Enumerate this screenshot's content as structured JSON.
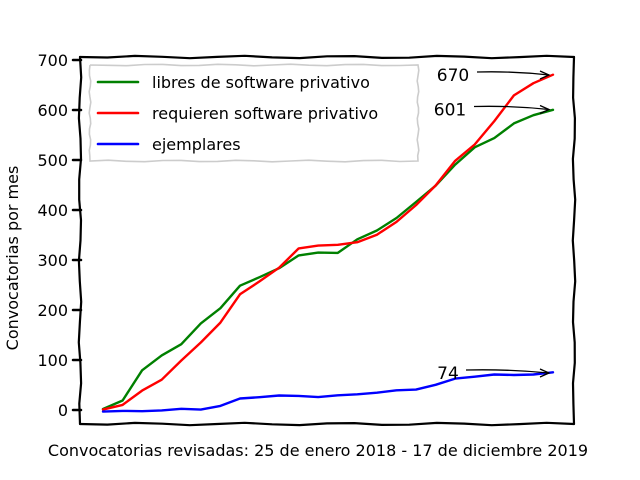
{
  "chart_data": {
    "type": "line",
    "xlabel": "Convocatorias revisadas: 25 de enero 2018 - 17 de diciembre 2019",
    "ylabel": "Convocatorias por mes",
    "ylim": [
      -30,
      700
    ],
    "yticks": [
      0,
      100,
      200,
      300,
      400,
      500,
      600,
      700
    ],
    "grid": false,
    "legend_position": "top-left",
    "x": [
      0,
      1,
      2,
      3,
      4,
      5,
      6,
      7,
      8,
      9,
      10,
      11,
      12,
      13,
      14,
      15,
      16,
      17,
      18,
      19,
      20,
      21,
      22,
      23
    ],
    "series": [
      {
        "name": "libres de software privativo",
        "color": "#008000",
        "values": [
          2,
          20,
          78,
          110,
          132,
          172,
          205,
          248,
          265,
          285,
          308,
          315,
          315,
          340,
          360,
          384,
          415,
          450,
          490,
          525,
          545,
          572,
          590,
          601
        ],
        "end_label": "601"
      },
      {
        "name": "requieren software privativo",
        "color": "#ff0000",
        "values": [
          2,
          10,
          38,
          62,
          98,
          135,
          176,
          230,
          258,
          285,
          322,
          330,
          330,
          335,
          352,
          375,
          410,
          450,
          497,
          532,
          578,
          628,
          655,
          670
        ],
        "end_label": "670"
      },
      {
        "name": "ejemplares",
        "color": "#0000ff",
        "values": [
          -2,
          -3,
          -2,
          0,
          1,
          2,
          8,
          22,
          27,
          28,
          28,
          27,
          28,
          32,
          35,
          38,
          42,
          50,
          62,
          68,
          70,
          70,
          72,
          74
        ],
        "end_label": "74"
      }
    ]
  }
}
